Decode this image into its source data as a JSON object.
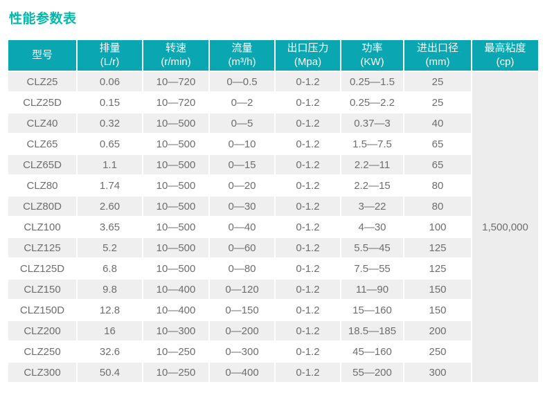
{
  "page": {
    "title": "性能参数表"
  },
  "colors": {
    "title_text": "#00b9a8",
    "header_bg": "#0aa7b3",
    "header_text": "#ffffff",
    "row_stripe": "#efefef",
    "row_plain": "#ffffff",
    "merged_cell_bg": "#ededed",
    "body_text": "#6d6d6d"
  },
  "table": {
    "headers": [
      {
        "key": "model",
        "name": "型号",
        "unit": ""
      },
      {
        "key": "displacement",
        "name": "排量",
        "unit": "(L/r)"
      },
      {
        "key": "speed",
        "name": "转速",
        "unit": "(r/min)"
      },
      {
        "key": "flow",
        "name": "流量",
        "unit": "(m³/h)"
      },
      {
        "key": "pressure",
        "name": "出口压力",
        "unit": "(Mpa)"
      },
      {
        "key": "power",
        "name": "功率",
        "unit": "(KW)"
      },
      {
        "key": "diameter",
        "name": "进出口径",
        "unit": "(mm)"
      },
      {
        "key": "viscosity",
        "name": "最高粘度",
        "unit": "(cp)"
      }
    ],
    "max_viscosity": "1,500,000",
    "rows": [
      [
        "CLZ25",
        "0.06",
        "10—720",
        "0—0.5",
        "0-1.2",
        "0.25—1.5",
        "25"
      ],
      [
        "CLZ25D",
        "0.15",
        "10—720",
        "0—2",
        "0-1.2",
        "0.25—2.2",
        "25"
      ],
      [
        "CLZ40",
        "0.32",
        "10—500",
        "0—5",
        "0-1.2",
        "0.37—3",
        "40"
      ],
      [
        "CLZ65",
        "0.65",
        "10—500",
        "0—10",
        "0-1.2",
        "1.5—7.5",
        "65"
      ],
      [
        "CLZ65D",
        "1.1",
        "10—500",
        "0—15",
        "0-1.2",
        "2.2—11",
        "65"
      ],
      [
        "CLZ80",
        "1.74",
        "10—500",
        "0—20",
        "0-1.2",
        "2.2—15",
        "80"
      ],
      [
        "CLZ80D",
        "2.60",
        "10—500",
        "0—30",
        "0-1.2",
        "3—22",
        "80"
      ],
      [
        "CLZ100",
        "3.65",
        "10—500",
        "0—40",
        "0-1.2",
        "4—30",
        "100"
      ],
      [
        "CLZ125",
        "5.2",
        "10—500",
        "0—60",
        "0-1.2",
        "5.5—45",
        "125"
      ],
      [
        "CLZ125D",
        "6.8",
        "10—500",
        "0—80",
        "0-1.2",
        "7.5—55",
        "125"
      ],
      [
        "CLZ150",
        "9.8",
        "10—400",
        "0—120",
        "0-1.2",
        "11—90",
        "150"
      ],
      [
        "CLZ150D",
        "12.8",
        "10—400",
        "0—150",
        "0-1.2",
        "15—160",
        "150"
      ],
      [
        "CLZ200",
        "16",
        "10—300",
        "0—200",
        "0-1.2",
        "18.5—185",
        "200"
      ],
      [
        "CLZ250",
        "32.6",
        "10—250",
        "0—300",
        "0-1.2",
        "45—160",
        "250"
      ],
      [
        "CLZ300",
        "50.4",
        "10—250",
        "0—400",
        "0-1.2",
        "55—200",
        "300"
      ]
    ]
  }
}
